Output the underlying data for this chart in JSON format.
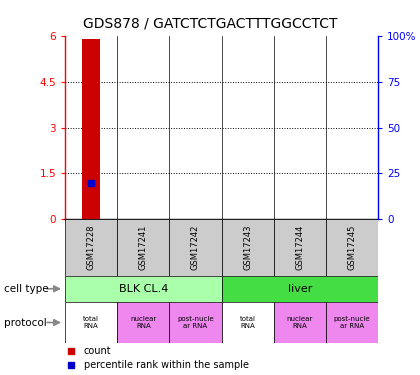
{
  "title": "GDS878 / GATCTCTGACTTTGGCCTCT",
  "samples": [
    "GSM17228",
    "GSM17241",
    "GSM17242",
    "GSM17243",
    "GSM17244",
    "GSM17245"
  ],
  "bar_data": [
    {
      "count": 5.9,
      "percentile": 20.0
    },
    {
      "count": null,
      "percentile": null
    },
    {
      "count": null,
      "percentile": null
    },
    {
      "count": null,
      "percentile": null
    },
    {
      "count": null,
      "percentile": null
    },
    {
      "count": null,
      "percentile": null
    }
  ],
  "ylim_left": [
    0,
    6
  ],
  "ylim_right": [
    0,
    100
  ],
  "yticks_left": [
    0,
    1.5,
    3.0,
    4.5,
    6.0
  ],
  "ytick_labels_left": [
    "0",
    "1.5",
    "3",
    "4.5",
    "6"
  ],
  "yticks_right": [
    0,
    25,
    50,
    75,
    100
  ],
  "ytick_labels_right": [
    "0",
    "25",
    "50",
    "75",
    "100%"
  ],
  "cell_type_groups": [
    {
      "label": "BLK CL.4",
      "start": 0,
      "end": 3,
      "color": "#aaffaa"
    },
    {
      "label": "liver",
      "start": 3,
      "end": 6,
      "color": "#44dd44"
    }
  ],
  "protocol_colors": [
    "#ffffff",
    "#ee88ee",
    "#ee88ee",
    "#ffffff",
    "#ee88ee",
    "#ee88ee"
  ],
  "protocol_labels": [
    "total\nRNA",
    "nuclear\nRNA",
    "post-nucle\nar RNA",
    "total\nRNA",
    "nuclear\nRNA",
    "post-nucle\nar RNA"
  ],
  "count_color": "#CC0000",
  "percentile_color": "#0000CC",
  "legend_count_label": "count",
  "legend_percentile_label": "percentile rank within the sample",
  "cell_type_label": "cell type",
  "protocol_label": "protocol",
  "background_color": "#ffffff",
  "title_fontsize": 10,
  "tick_fontsize": 7.5,
  "bar_width": 0.35
}
